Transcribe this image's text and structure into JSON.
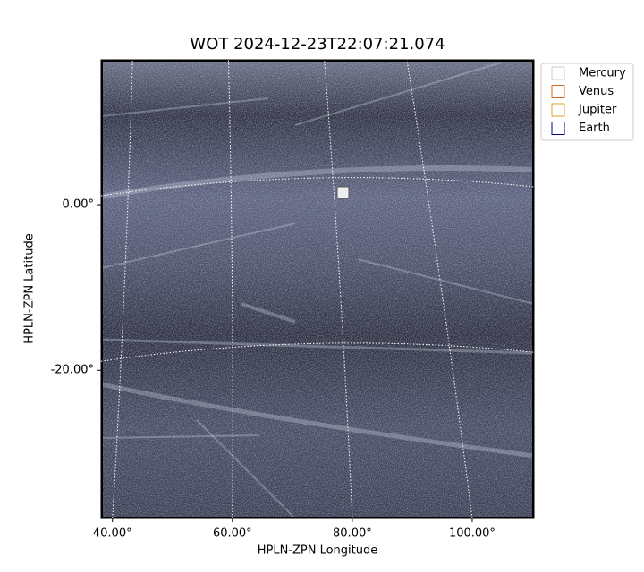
{
  "chart_data": {
    "type": "image",
    "title": "WOT 2024-12-23T22:07:21.074",
    "x_label": "HPLN-ZPN Longitude",
    "y_label": "HPLN-ZPN Latitude",
    "xlim": [
      38.1,
      110.3
    ],
    "ylim": [
      -37.9,
      17.5
    ],
    "xticks": [
      {
        "value": 40,
        "label": "40.00°"
      },
      {
        "value": 60,
        "label": "60.00°"
      },
      {
        "value": 80,
        "label": "80.00°"
      },
      {
        "value": 100,
        "label": "100.00°"
      }
    ],
    "yticks": [
      {
        "value": 0,
        "label": "0.00°"
      },
      {
        "value": -20,
        "label": "-20.00°"
      }
    ],
    "grid": true,
    "legend": "upper right outside",
    "series": [
      {
        "name": "Mercury",
        "color": "#cccccc"
      },
      {
        "name": "Venus",
        "color": "#d2691e"
      },
      {
        "name": "Jupiter",
        "color": "#daa520"
      },
      {
        "name": "Earth",
        "color": "#000080"
      }
    ]
  }
}
